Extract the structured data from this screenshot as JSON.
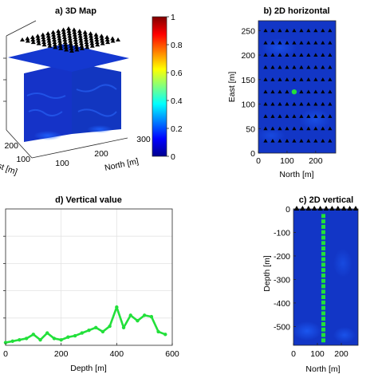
{
  "chart_data": [
    {
      "panel": "a",
      "type": "heatmap",
      "title": "a) 3D Map",
      "xlabel": "North [m]",
      "ylabel": "East [m]",
      "x_ticks": [
        100,
        200,
        300
      ],
      "y_ticks": [
        100,
        200
      ],
      "colorbar": {
        "min": 0,
        "max": 1,
        "ticks": [
          0,
          0.2,
          0.4,
          0.6,
          0.8,
          1
        ]
      }
    },
    {
      "panel": "b",
      "type": "scatter",
      "title": "b) 2D horizontal",
      "xlabel": "North [m]",
      "ylabel": "East [m]",
      "xlim": [
        0,
        270
      ],
      "ylim": [
        0,
        270
      ],
      "x_ticks": [
        0,
        100,
        200
      ],
      "y_ticks": [
        0,
        50,
        100,
        150,
        200,
        250
      ],
      "grid_positions": [
        25,
        50,
        75,
        100,
        125,
        150,
        175,
        200,
        225,
        250
      ],
      "highlight": {
        "x": 125,
        "y": 125
      }
    },
    {
      "panel": "c",
      "type": "heatmap",
      "title": "c) 2D vertical",
      "xlabel": "North [m]",
      "ylabel": "Depth [m]",
      "xlim": [
        0,
        270
      ],
      "ylim": [
        -580,
        0
      ],
      "x_ticks": [
        0,
        100,
        200
      ],
      "y_ticks": [
        0,
        -100,
        -200,
        -300,
        -400,
        -500
      ],
      "profile_x": 125
    },
    {
      "panel": "d",
      "type": "line",
      "title": "d) Vertical value",
      "xlabel": "Depth [m]",
      "ylabel": "",
      "xlim": [
        0,
        600
      ],
      "ylim": [
        0,
        1
      ],
      "x_ticks": [
        0,
        200,
        400,
        600
      ],
      "grid": true,
      "x": [
        0,
        25,
        50,
        75,
        100,
        125,
        150,
        175,
        200,
        225,
        250,
        275,
        300,
        325,
        350,
        375,
        400,
        425,
        450,
        475,
        500,
        525,
        550,
        575
      ],
      "values": [
        0.02,
        0.03,
        0.04,
        0.05,
        0.08,
        0.04,
        0.09,
        0.05,
        0.04,
        0.06,
        0.07,
        0.09,
        0.11,
        0.13,
        0.1,
        0.14,
        0.28,
        0.13,
        0.22,
        0.18,
        0.22,
        0.21,
        0.1,
        0.08
      ]
    }
  ]
}
